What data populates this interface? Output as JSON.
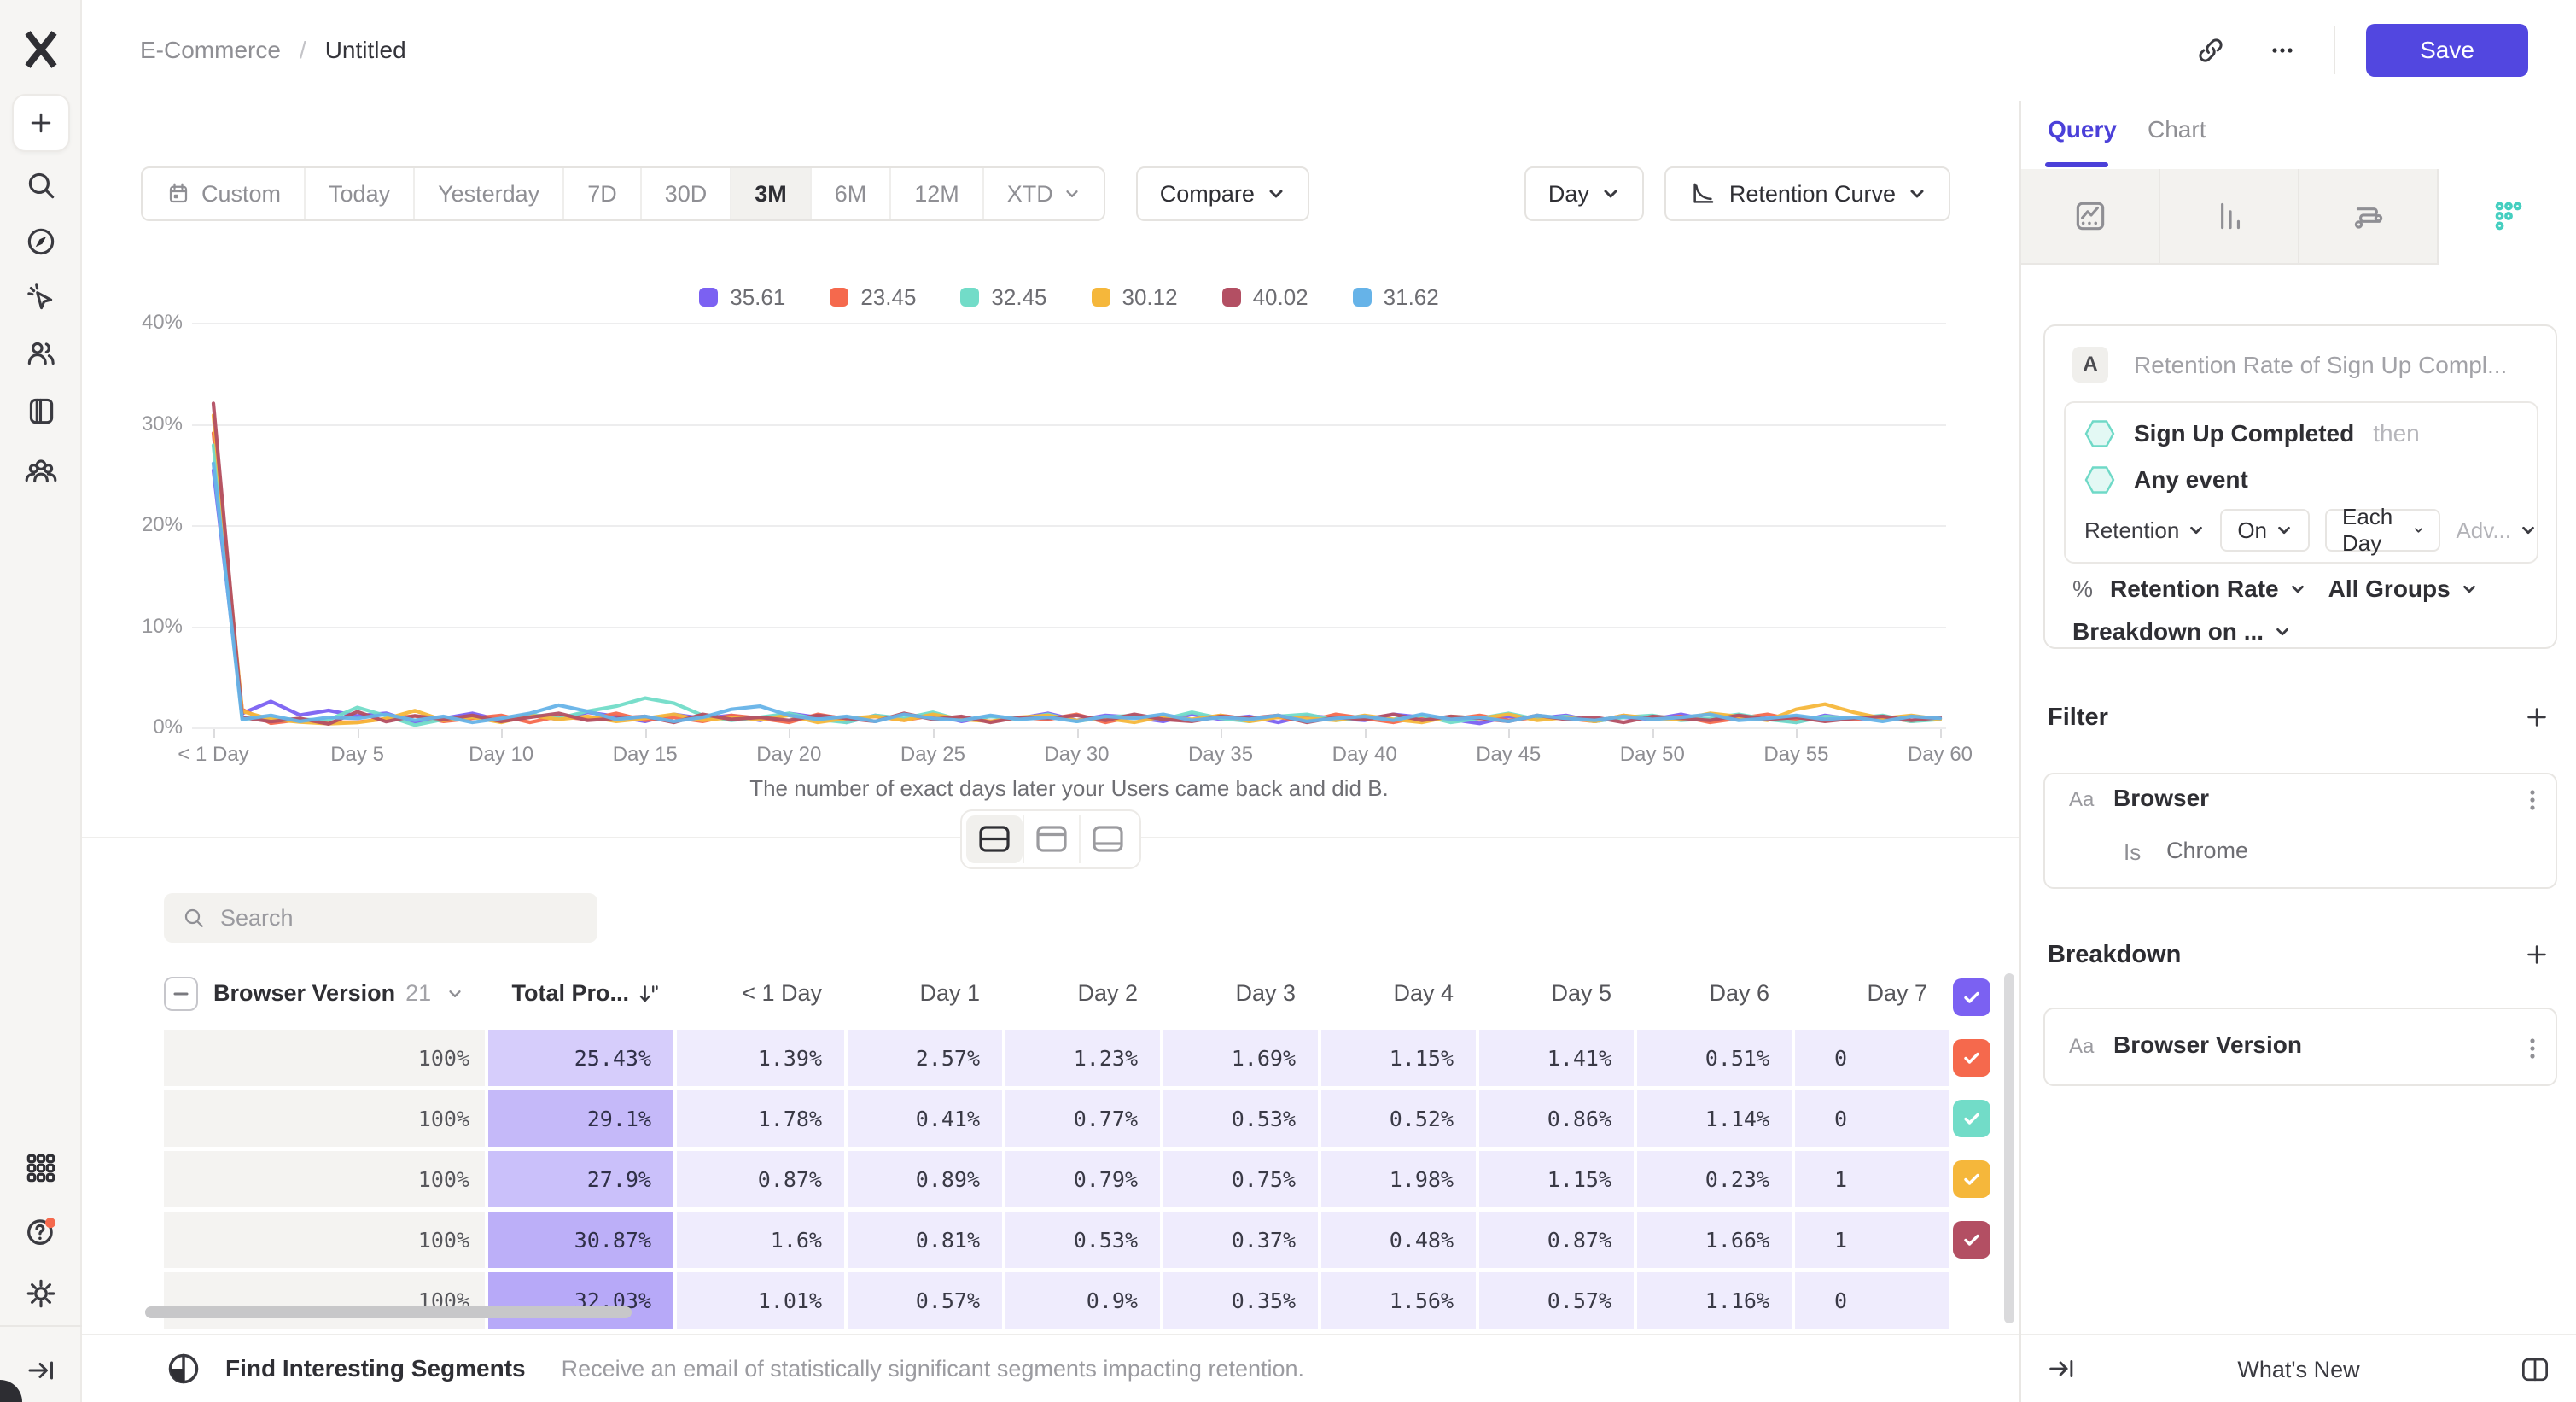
{
  "topbar": {
    "breadcrumb": {
      "project": "E-Commerce",
      "separator": "/",
      "title": "Untitled"
    },
    "save_label": "Save"
  },
  "toolbar": {
    "date_ranges": [
      {
        "label": "Custom",
        "icon": "calendar"
      },
      {
        "label": "Today"
      },
      {
        "label": "Yesterday"
      },
      {
        "label": "7D"
      },
      {
        "label": "30D"
      },
      {
        "label": "3M",
        "selected": true
      },
      {
        "label": "6M"
      },
      {
        "label": "12M"
      },
      {
        "label": "XTD",
        "chevron": true
      }
    ],
    "compare_label": "Compare",
    "granularity_label": "Day",
    "chart_type_label": "Retention Curve"
  },
  "chart_data": {
    "type": "line",
    "title": "",
    "xlabel": "",
    "ylabel": "",
    "ylim": [
      0,
      40
    ],
    "grid": true,
    "legend_position": "top-center",
    "y_tick_labels": [
      "0%",
      "10%",
      "20%",
      "30%",
      "40%"
    ],
    "x_tick_labels": [
      "< 1 Day",
      "Day 5",
      "Day 10",
      "Day 15",
      "Day 20",
      "Day 25",
      "Day 30",
      "Day 35",
      "Day 40",
      "Day 45",
      "Day 50",
      "Day 55",
      "Day 60"
    ],
    "caption": "The number of exact days later your Users came back and did B.",
    "series": [
      {
        "name": "35.61",
        "color": "#7b61f2",
        "values": [
          25.43,
          1.39,
          2.57,
          1.23,
          1.69,
          1.15,
          1.41,
          0.51,
          0.9,
          1.4,
          0.7,
          1.2,
          0.8,
          1.5,
          1.1,
          0.6,
          1.3,
          0.9,
          1.2,
          0.7,
          1.4,
          1.0,
          0.5,
          1.2,
          0.8,
          1.3,
          0.6,
          1.1,
          0.9,
          1.4,
          0.7,
          1.2,
          1.0,
          0.6,
          1.3,
          0.8,
          1.1,
          0.5,
          1.2,
          0.9,
          0.7,
          1.3,
          1.0,
          0.8,
          0.4,
          1.1,
          0.9,
          1.2,
          0.6,
          1.0,
          0.8,
          1.3,
          0.7,
          1.1,
          0.9,
          0.5,
          1.2,
          0.8,
          1.0,
          0.7,
          0.9
        ]
      },
      {
        "name": "23.45",
        "color": "#f5694d",
        "values": [
          29.1,
          1.78,
          0.41,
          0.77,
          0.53,
          0.52,
          0.86,
          1.14,
          0.6,
          0.9,
          1.2,
          0.5,
          1.1,
          0.8,
          1.4,
          0.7,
          1.0,
          0.6,
          1.2,
          0.9,
          0.5,
          1.3,
          0.8,
          1.1,
          0.7,
          1.2,
          0.9,
          0.6,
          1.0,
          0.8,
          1.3,
          0.5,
          1.1,
          0.9,
          0.7,
          1.2,
          0.8,
          1.0,
          0.6,
          1.3,
          0.9,
          0.5,
          1.1,
          0.8,
          1.2,
          0.7,
          1.0,
          0.9,
          0.6,
          1.2,
          0.8,
          1.1,
          0.5,
          0.9,
          1.3,
          0.7,
          1.0,
          0.8,
          1.1,
          0.6,
          0.9
        ]
      },
      {
        "name": "32.45",
        "color": "#72dcc8",
        "values": [
          27.9,
          0.87,
          0.89,
          0.79,
          0.75,
          1.98,
          1.15,
          0.23,
          0.8,
          1.1,
          0.6,
          1.3,
          0.9,
          1.6,
          2.1,
          2.9,
          2.4,
          1.2,
          0.7,
          1.0,
          1.4,
          0.8,
          0.5,
          1.2,
          0.9,
          1.5,
          0.7,
          1.1,
          0.8,
          1.3,
          0.6,
          1.0,
          1.2,
          0.8,
          1.5,
          0.9,
          0.6,
          1.1,
          1.3,
          0.7,
          1.0,
          0.8,
          1.2,
          0.5,
          0.9,
          1.4,
          0.8,
          1.1,
          0.6,
          1.0,
          1.2,
          0.7,
          0.9,
          1.3,
          0.8,
          0.5,
          1.1,
          0.9,
          1.2,
          0.6,
          0.8
        ]
      },
      {
        "name": "30.12",
        "color": "#f5b73b",
        "values": [
          30.87,
          1.6,
          0.81,
          0.53,
          0.37,
          0.48,
          0.87,
          1.66,
          0.7,
          1.0,
          0.5,
          1.2,
          0.8,
          1.1,
          0.6,
          0.9,
          1.3,
          0.7,
          1.0,
          0.8,
          1.2,
          0.5,
          0.9,
          1.1,
          0.7,
          1.3,
          0.8,
          0.6,
          1.0,
          1.2,
          0.7,
          0.9,
          0.5,
          1.1,
          0.8,
          1.2,
          0.6,
          1.0,
          0.9,
          0.7,
          1.2,
          0.8,
          0.5,
          1.1,
          0.9,
          1.3,
          0.7,
          1.0,
          0.6,
          1.2,
          0.9,
          0.8,
          1.4,
          1.1,
          0.7,
          1.8,
          2.3,
          1.5,
          0.9,
          1.2,
          0.8
        ]
      },
      {
        "name": "40.02",
        "color": "#b34f63",
        "values": [
          32.03,
          1.01,
          0.57,
          0.9,
          0.35,
          1.56,
          0.57,
          1.16,
          0.8,
          1.2,
          0.6,
          1.0,
          1.4,
          0.7,
          0.9,
          1.1,
          0.5,
          1.3,
          0.8,
          1.0,
          0.7,
          1.2,
          0.9,
          0.6,
          1.4,
          0.8,
          1.1,
          0.5,
          1.0,
          0.9,
          1.2,
          0.7,
          1.3,
          0.8,
          0.6,
          1.1,
          0.9,
          1.2,
          0.5,
          1.0,
          0.8,
          1.3,
          0.7,
          1.1,
          0.9,
          0.6,
          1.2,
          0.8,
          1.0,
          0.5,
          1.1,
          0.9,
          0.7,
          1.2,
          0.8,
          1.0,
          0.6,
          0.9,
          1.1,
          0.7,
          1.0
        ]
      },
      {
        "name": "31.62",
        "color": "#66b3e8",
        "values": [
          26.1,
          0.8,
          1.2,
          0.6,
          1.0,
          0.9,
          1.3,
          0.7,
          1.1,
          0.5,
          0.9,
          1.4,
          2.2,
          1.6,
          0.8,
          1.1,
          0.6,
          1.0,
          1.8,
          2.1,
          1.2,
          0.8,
          1.1,
          0.6,
          1.3,
          0.9,
          0.7,
          1.2,
          0.8,
          1.0,
          0.6,
          1.1,
          0.9,
          1.3,
          0.7,
          1.0,
          0.8,
          1.2,
          0.6,
          0.9,
          1.1,
          0.7,
          1.3,
          0.8,
          1.0,
          0.6,
          1.2,
          0.9,
          0.7,
          1.1,
          0.8,
          1.0,
          1.3,
          0.7,
          0.9,
          1.2,
          0.8,
          1.0,
          0.6,
          1.1,
          0.9
        ]
      }
    ]
  },
  "search": {
    "placeholder": "Search"
  },
  "table": {
    "group_label": "Browser Version",
    "group_count": "21",
    "total_label": "Total Pro...",
    "day_headers": [
      "< 1 Day",
      "Day 1",
      "Day 2",
      "Day 3",
      "Day 4",
      "Day 5",
      "Day 6",
      "Day 7"
    ],
    "rows": [
      {
        "label": "35.61",
        "color": "#7b61f2",
        "total": "100%",
        "values": [
          "25.43%",
          "1.39%",
          "2.57%",
          "1.23%",
          "1.69%",
          "1.15%",
          "1.41%",
          "0.51%"
        ],
        "clipped": "0"
      },
      {
        "label": "23.45",
        "color": "#f5694d",
        "total": "100%",
        "values": [
          "29.1%",
          "1.78%",
          "0.41%",
          "0.77%",
          "0.53%",
          "0.52%",
          "0.86%",
          "1.14%"
        ],
        "clipped": "0"
      },
      {
        "label": "32.45",
        "color": "#72dcc8",
        "total": "100%",
        "values": [
          "27.9%",
          "0.87%",
          "0.89%",
          "0.79%",
          "0.75%",
          "1.98%",
          "1.15%",
          "0.23%"
        ],
        "clipped": "1"
      },
      {
        "label": "30.12",
        "color": "#f5b73b",
        "total": "100%",
        "values": [
          "30.87%",
          "1.6%",
          "0.81%",
          "0.53%",
          "0.37%",
          "0.48%",
          "0.87%",
          "1.66%"
        ],
        "clipped": "1"
      },
      {
        "label": "40.02",
        "color": "#b34f63",
        "total": "100%",
        "values": [
          "32.03%",
          "1.01%",
          "0.57%",
          "0.9%",
          "0.35%",
          "1.56%",
          "0.57%",
          "1.16%"
        ],
        "clipped": "0"
      }
    ]
  },
  "footer": {
    "title": "Find Interesting Segments",
    "subtitle": "Receive an email of statistically significant segments impacting retention."
  },
  "panel": {
    "tabs": {
      "query": "Query",
      "chart": "Chart"
    },
    "query": {
      "badge": "A",
      "title": "Retention Rate of Sign Up Compl...",
      "event1": "Sign Up Completed",
      "then": "then",
      "event2": "Any event",
      "retention_label": "Retention",
      "on_label": "On",
      "each_day_label": "Each Day",
      "advanced_label": "Adv...",
      "percent_sign": "%",
      "rate_label": "Retention Rate",
      "groups_label": "All Groups",
      "breakdown_on_label": "Breakdown on ..."
    },
    "filter": {
      "heading": "Filter",
      "prop_type": "Aa",
      "name": "Browser",
      "operator": "Is",
      "value": "Chrome"
    },
    "breakdown": {
      "heading": "Breakdown",
      "prop_type": "Aa",
      "name": "Browser Version"
    },
    "whats_new": "What's New"
  }
}
